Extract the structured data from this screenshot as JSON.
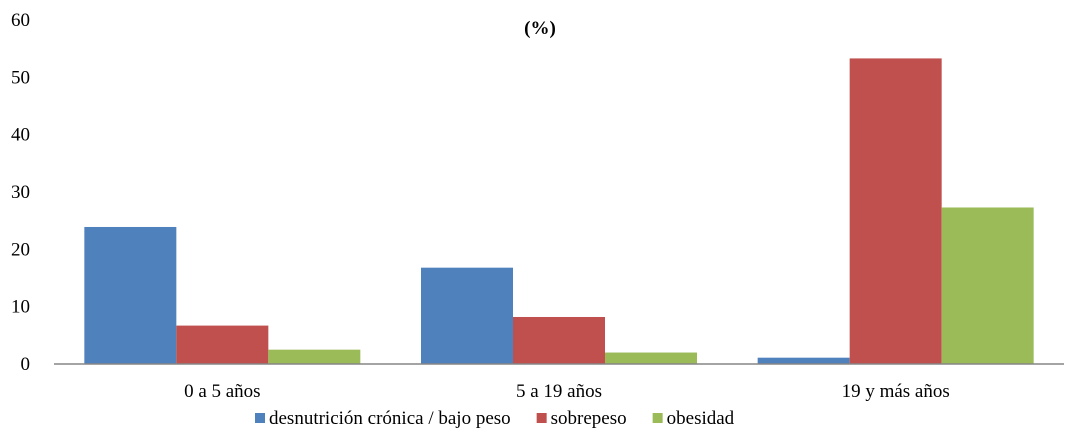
{
  "chart_data": {
    "type": "bar",
    "title": "(%)",
    "xlabel": "",
    "ylabel": "",
    "categories": [
      "0 a 5 años",
      "5 a 19 años",
      "19 y más años"
    ],
    "series": [
      {
        "name": "desnutrición crónica / bajo peso",
        "color": "#4F81BD",
        "values": [
          23.9,
          16.8,
          1.1
        ]
      },
      {
        "name": "sobrepeso",
        "color": "#C0504D",
        "values": [
          6.7,
          8.2,
          53.3
        ]
      },
      {
        "name": "obesidad",
        "color": "#9BBB59",
        "values": [
          2.5,
          2.0,
          27.3
        ]
      }
    ],
    "ylim": [
      0,
      60
    ],
    "yticks": [
      0,
      10,
      20,
      30,
      40,
      50,
      60
    ],
    "grid": false,
    "legend_position": "bottom"
  }
}
